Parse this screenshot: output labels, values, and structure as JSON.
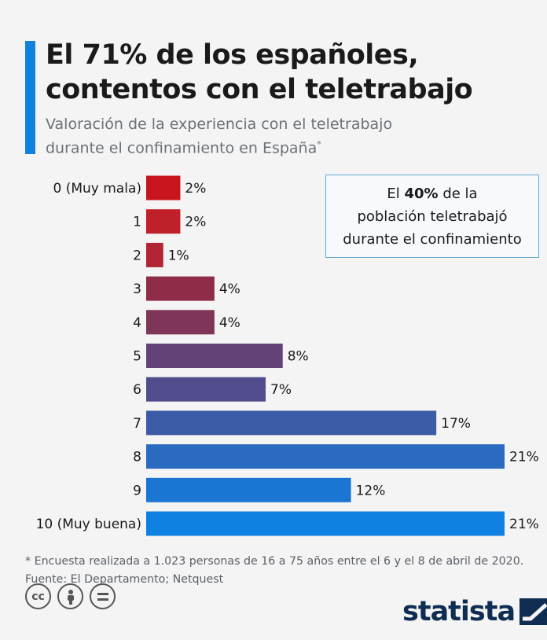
{
  "header": {
    "title_line1": "El 71% de los españoles,",
    "title_line2": "contentos con el teletrabajo",
    "subtitle_line1": "Valoración de la experiencia con el teletrabajo",
    "subtitle_line2": "durante el confinamiento en España",
    "subtitle_marker": "*",
    "accent_color": "#1081df"
  },
  "callout": {
    "prefix": "El",
    "highlight": "40%",
    "suffix": "de la",
    "line2": "población teletrabajó",
    "line3": "durante el confinamiento"
  },
  "chart_data": {
    "type": "bar",
    "orientation": "horizontal",
    "categories": [
      "0 (Muy mala)",
      "1",
      "2",
      "3",
      "4",
      "5",
      "6",
      "7",
      "8",
      "9",
      "10 (Muy buena)"
    ],
    "values": [
      2,
      2,
      1,
      4,
      4,
      8,
      7,
      17,
      21,
      12,
      21
    ],
    "value_labels": [
      "2%",
      "2%",
      "1%",
      "4%",
      "4%",
      "8%",
      "7%",
      "17%",
      "21%",
      "12%",
      "21%"
    ],
    "colors": [
      "#c8141c",
      "#c0202a",
      "#b02434",
      "#8f2c48",
      "#7e3557",
      "#644278",
      "#514c8c",
      "#3c5ba6",
      "#2a6ac0",
      "#1b75d2",
      "#0e80e2"
    ],
    "xlim": [
      0,
      21
    ],
    "grid": false,
    "legend": "none"
  },
  "footer": {
    "note": "* Encuesta realizada a 1.023 personas de 16 a 75 años entre el 6 y el 8 de abril de 2020.",
    "source": "Fuente: El Departamento; Netquest",
    "logo_text": "statista",
    "license_icons": [
      "cc-icon",
      "person-icon",
      "equals-icon"
    ]
  }
}
